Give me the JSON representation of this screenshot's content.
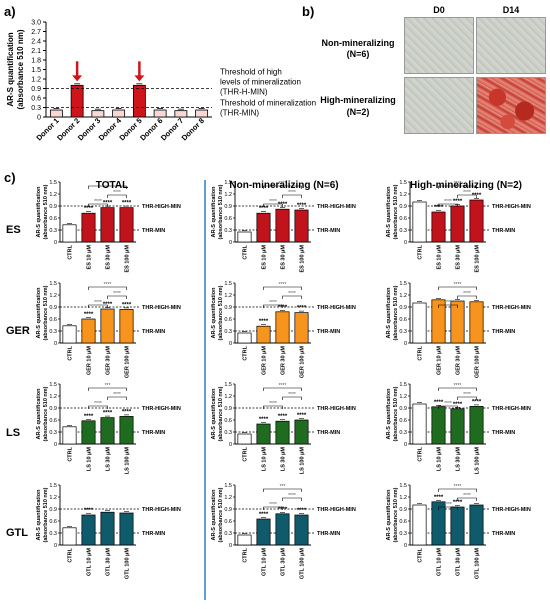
{
  "panel_labels": {
    "a": "a)",
    "b": "b)",
    "c": "c)"
  },
  "panel_b": {
    "col_headers": [
      "D0",
      "D14"
    ],
    "row_labels": [
      {
        "line1": "Non-mineralizing",
        "line2": "(N=6)"
      },
      {
        "line1": "High-mineralizing",
        "line2": "(N=2)"
      }
    ]
  },
  "panel_c": {
    "col_titles": [
      "TOTAL",
      "Non-mineralizing (N=6)",
      "High-mineralizing (N=2)"
    ],
    "row_labels": [
      "ES",
      "GER",
      "LS",
      "GTL"
    ],
    "ylabel": "AR-S quantification",
    "ylabel2": "(absorbance 510 nm)",
    "thr_high": "THR-HIGH-MIN",
    "thr_low": "THR-MIN",
    "yticks": [
      "0",
      "0.3",
      "0.6",
      "0.9",
      "1.2",
      "1.5"
    ]
  },
  "colors": {
    "ES": "#c0131b",
    "GER": "#f7941d",
    "LS": "#1f6b1f",
    "GTL": "#0f5a6b",
    "arrow": "#d0141b"
  },
  "chart_data": [
    {
      "type": "bar",
      "categories": [
        "Donor 1",
        "Donor 2",
        "Donor 3",
        "Donor 4",
        "Donor 5",
        "Donor 6",
        "Donor 7",
        "Donor 8"
      ],
      "values": [
        0.22,
        1.0,
        0.2,
        0.22,
        1.0,
        0.22,
        0.2,
        0.22
      ],
      "highlighted": [
        "Donor 2",
        "Donor 5"
      ],
      "ylabel": "AR-S quantification",
      "ylabel2": "(absorbance 510 nm)",
      "ylim": [
        0,
        3.0
      ],
      "yticks": [
        "0",
        "0.3",
        "0.6",
        "0.9",
        "1.2",
        "1.5",
        "1.8",
        "2.1",
        "2.4",
        "2.7",
        "3.0"
      ],
      "thresholds": [
        {
          "value": 0.9,
          "label1": "Threshold of high",
          "label2": "levels of mineralization",
          "label3": "(THR-H-MIN)"
        },
        {
          "value": 0.3,
          "label1": "Threshold of mineralization",
          "label2": "(THR-MIN)"
        }
      ]
    },
    {
      "type": "bar",
      "group": "TOTAL",
      "compound": "ES",
      "categories": [
        "CTRL",
        "ES 10 μM",
        "ES 30 μM",
        "ES 100 μM"
      ],
      "values": [
        0.43,
        0.72,
        0.86,
        0.86
      ],
      "sig": [
        "",
        "****",
        "****",
        "****"
      ],
      "brackets": [
        "****",
        "****",
        "****"
      ]
    },
    {
      "type": "bar",
      "group": "Non-mineralizing",
      "compound": "ES",
      "categories": [
        "CTRL",
        "ES 10 μM",
        "ES 30 μM",
        "ES 100 μM"
      ],
      "values": [
        0.25,
        0.72,
        0.82,
        0.8
      ],
      "sig": [
        "",
        "****",
        "****",
        "****"
      ],
      "brackets": [
        "****",
        "****",
        "****"
      ]
    },
    {
      "type": "bar",
      "group": "High-mineralizing",
      "compound": "ES",
      "categories": [
        "CTRL",
        "ES 10 μM",
        "ES 30 μM",
        "ES 100 μM"
      ],
      "values": [
        1.0,
        0.75,
        0.9,
        1.05
      ],
      "sig": [
        "",
        "****",
        "****",
        "****"
      ],
      "brackets": [
        "****",
        "****",
        "****"
      ]
    },
    {
      "type": "bar",
      "group": "TOTAL",
      "compound": "GER",
      "categories": [
        "CTRL",
        "GER 10 μM",
        "GER 30 μM",
        "GER 100 μM"
      ],
      "values": [
        0.43,
        0.6,
        0.85,
        0.84
      ],
      "sig": [
        "",
        "****",
        "****",
        "****"
      ],
      "brackets": [
        "****",
        "****",
        "****"
      ]
    },
    {
      "type": "bar",
      "group": "Non-mineralizing",
      "compound": "GER",
      "categories": [
        "CTRL",
        "GER 10 μM",
        "GER 30 μM",
        "GER 100 μM"
      ],
      "values": [
        0.25,
        0.42,
        0.78,
        0.76
      ],
      "sig": [
        "",
        "****",
        "****",
        "****"
      ],
      "brackets": [
        "****",
        "****",
        "****"
      ]
    },
    {
      "type": "bar",
      "group": "High-mineralizing",
      "compound": "GER",
      "categories": [
        "CTRL",
        "GER 10 μM",
        "GER 30 μM",
        "GER 100 μM"
      ],
      "values": [
        1.0,
        1.08,
        1.05,
        1.03
      ],
      "sig": [
        "",
        "",
        "",
        ""
      ],
      "brackets": [
        "****",
        "****",
        "****"
      ]
    },
    {
      "type": "bar",
      "group": "TOTAL",
      "compound": "LS",
      "categories": [
        "CTRL",
        "LS 10 μM",
        "LS 30 μM",
        "LS 100 μM"
      ],
      "values": [
        0.43,
        0.58,
        0.66,
        0.69
      ],
      "sig": [
        "",
        "****",
        "****",
        "****"
      ],
      "brackets": [
        "****",
        "****",
        "***"
      ]
    },
    {
      "type": "bar",
      "group": "Non-mineralizing",
      "compound": "LS",
      "categories": [
        "CTRL",
        "LS 10 μM",
        "LS 30 μM",
        "LS 100 μM"
      ],
      "values": [
        0.25,
        0.5,
        0.57,
        0.6
      ],
      "sig": [
        "",
        "****",
        "****",
        "****"
      ],
      "brackets": [
        "****",
        "****",
        "****"
      ]
    },
    {
      "type": "bar",
      "group": "High-mineralizing",
      "compound": "LS",
      "categories": [
        "CTRL",
        "LS 10 μM",
        "LS 30 μM",
        "LS 100 μM"
      ],
      "values": [
        1.0,
        0.93,
        0.88,
        0.94
      ],
      "sig": [
        "",
        "****",
        "****",
        "****"
      ],
      "brackets": [
        "****",
        "****",
        "****"
      ]
    },
    {
      "type": "bar",
      "group": "TOTAL",
      "compound": "GTL",
      "categories": [
        "CTRL",
        "GTL 10 μM",
        "GTL 30 μM",
        "GTL 100 μM"
      ],
      "values": [
        0.43,
        0.75,
        0.82,
        0.8
      ],
      "sig": [
        "",
        "****",
        "",
        ""
      ],
      "brackets": []
    },
    {
      "type": "bar",
      "group": "Non-mineralizing",
      "compound": "GTL",
      "categories": [
        "CTRL",
        "GTL 10 μM",
        "GTL 30 μM",
        "GTL 100 μM"
      ],
      "values": [
        0.25,
        0.65,
        0.78,
        0.75
      ],
      "sig": [
        "",
        "****",
        "****",
        "****"
      ],
      "brackets": [
        "****",
        "****",
        "***"
      ]
    },
    {
      "type": "bar",
      "group": "High-mineralizing",
      "compound": "GTL",
      "categories": [
        "CTRL",
        "GTL 10 μM",
        "GTL 30 μM",
        "GTL 100 μM"
      ],
      "values": [
        1.0,
        1.08,
        0.95,
        1.0
      ],
      "sig": [
        "",
        "****",
        "****",
        ""
      ],
      "brackets": [
        "****",
        "****",
        "****"
      ]
    }
  ]
}
